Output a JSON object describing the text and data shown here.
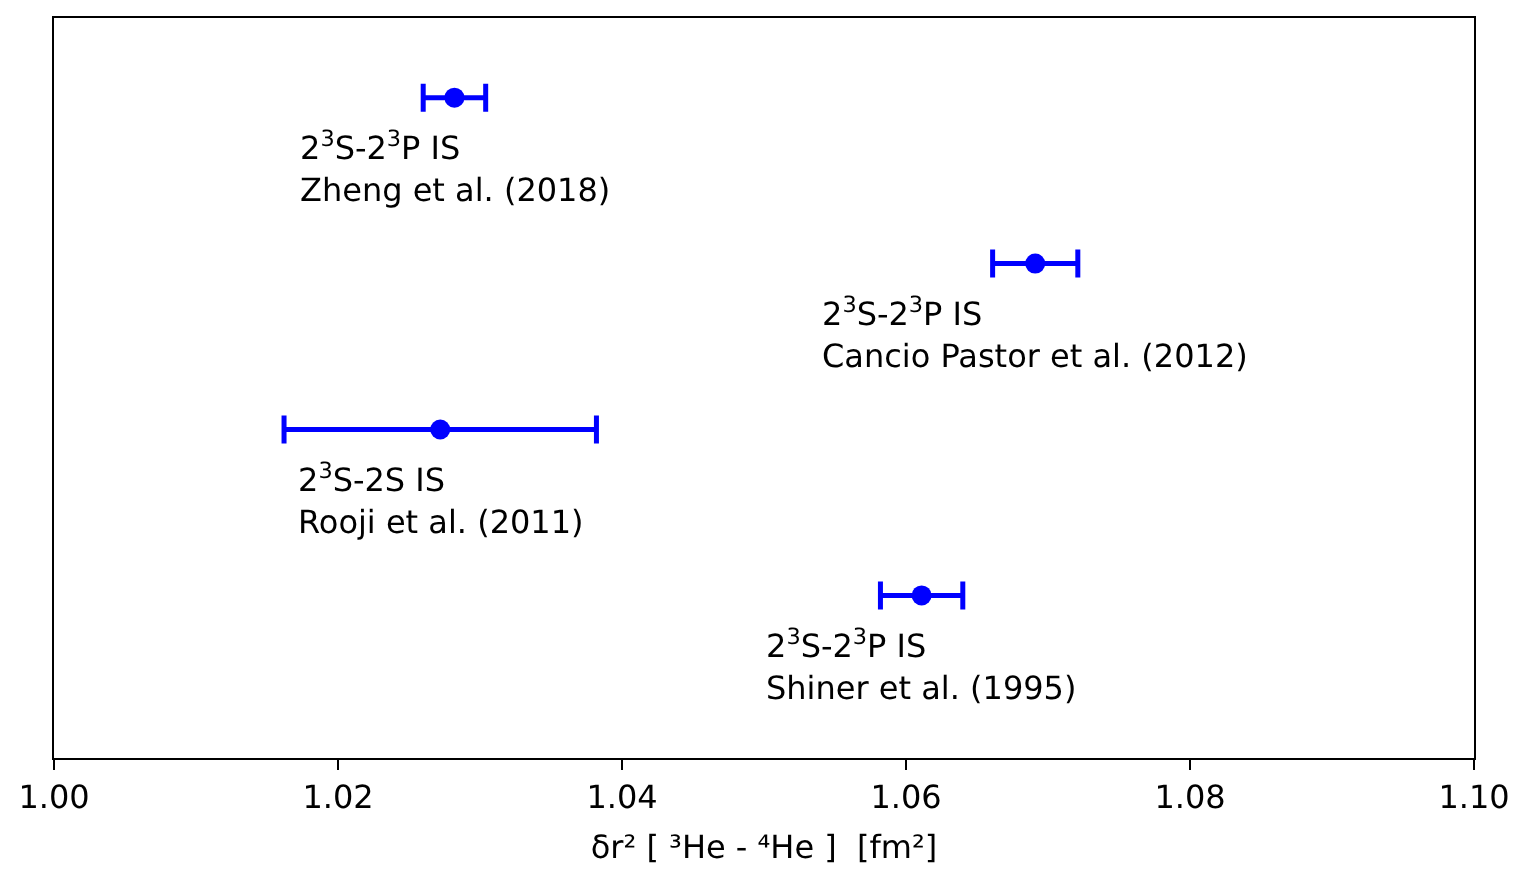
{
  "chart_data": {
    "type": "scatter",
    "orientation": "horizontal",
    "categories": [
      "2$^{3}$S-2$^{3}$P IS\nZheng et al. (2018)",
      "2$^{3}$S-2$^{3}$P IS\nCancio Pastor et al. (2012)",
      "2$^{3}$S-2S IS\nRooji et al. (2011)",
      "2$^{3}$S-2$^{3}$P IS\nShiner et al. (1995)"
    ],
    "values": [
      1.0282,
      1.0691,
      1.0272,
      1.0611
    ],
    "errors": [
      0.0022,
      0.003,
      0.011,
      0.0029
    ],
    "color": "#0000ff",
    "marker": "circle",
    "xlabel": "δr² [ ³He - ⁴He ]  [fm²]",
    "xlim": [
      1.0,
      1.1
    ],
    "xticks": [
      {
        "value": 1.0,
        "label": "1.00"
      },
      {
        "value": 1.02,
        "label": "1.02"
      },
      {
        "value": 1.04,
        "label": "1.04"
      },
      {
        "value": 1.06,
        "label": "1.06"
      },
      {
        "value": 1.08,
        "label": "1.08"
      },
      {
        "value": 1.1,
        "label": "1.10"
      }
    ],
    "tick_labels": "x",
    "legend": false
  }
}
